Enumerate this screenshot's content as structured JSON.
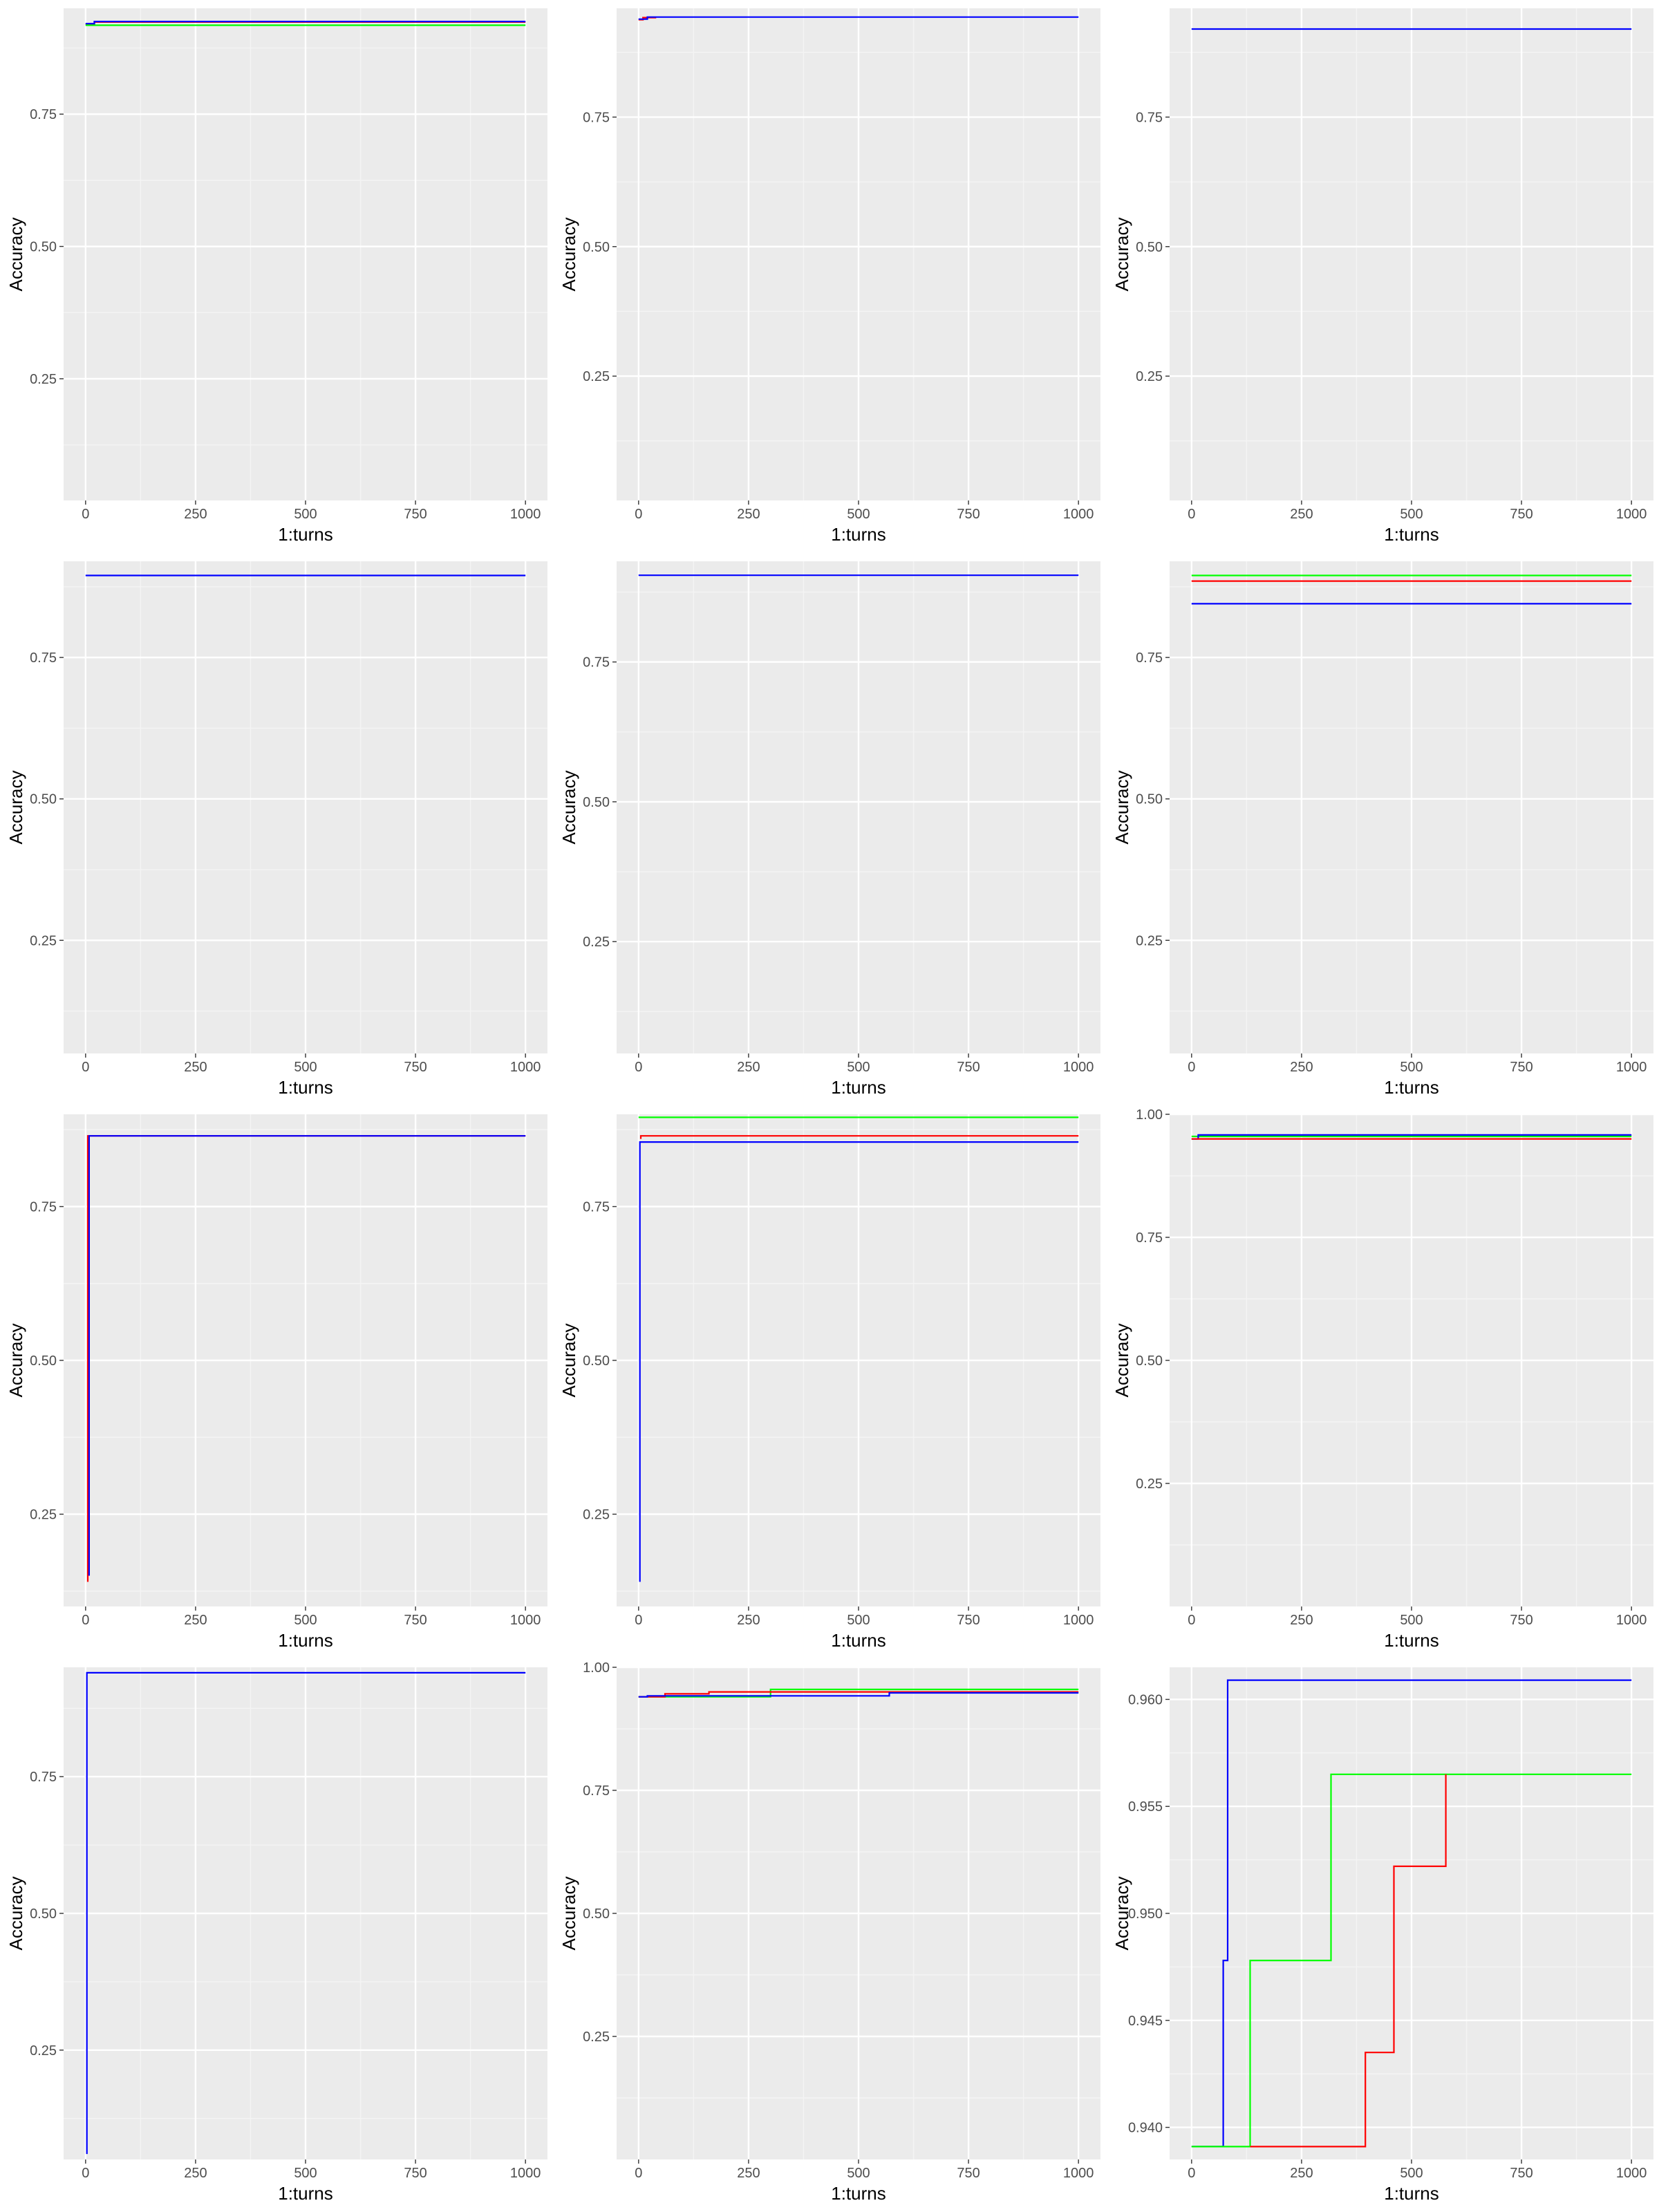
{
  "colors": {
    "panel_bg": "#ebebeb",
    "grid_major": "#ffffff",
    "grid_minor": "#f4f4f4",
    "red": "#ff0000",
    "green": "#00ff00",
    "blue": "#0000ff"
  },
  "chart_data": [
    {
      "type": "line",
      "xlabel": "1:turns",
      "ylabel": "Accuracy",
      "xlim": [
        -50,
        1050
      ],
      "ylim": [
        0.02,
        0.95
      ],
      "xticks": [
        "0",
        "250",
        "500",
        "750",
        "1000"
      ],
      "yticks": [
        "0.25",
        "0.50",
        "0.75"
      ],
      "ytick_values": [
        0.25,
        0.5,
        0.75
      ],
      "series": [
        {
          "color": "red",
          "x": [
            0,
            20,
            20,
            1000
          ],
          "y": [
            0.92,
            0.92,
            0.924,
            0.924
          ]
        },
        {
          "color": "green",
          "x": [
            0,
            1000
          ],
          "y": [
            0.918,
            0.918
          ]
        },
        {
          "color": "blue",
          "x": [
            0,
            20,
            20,
            1000
          ],
          "y": [
            0.921,
            0.921,
            0.925,
            0.925
          ]
        }
      ]
    },
    {
      "type": "line",
      "xlabel": "1:turns",
      "ylabel": "Accuracy",
      "xlim": [
        -50,
        1050
      ],
      "ylim": [
        0.01,
        0.96
      ],
      "xticks": [
        "0",
        "250",
        "500",
        "750",
        "1000"
      ],
      "yticks": [
        "0.25",
        "0.50",
        "0.75"
      ],
      "ytick_values": [
        0.25,
        0.5,
        0.75
      ],
      "series": [
        {
          "color": "red",
          "x": [
            0,
            10,
            10,
            40
          ],
          "y": [
            0.938,
            0.938,
            0.942,
            0.942
          ]
        },
        {
          "color": "blue",
          "x": [
            0,
            20,
            20,
            1000
          ],
          "y": [
            0.939,
            0.939,
            0.943,
            0.943
          ]
        }
      ]
    },
    {
      "type": "line",
      "xlabel": "1:turns",
      "ylabel": "Accuracy",
      "xlim": [
        -50,
        1050
      ],
      "ylim": [
        0.01,
        0.96
      ],
      "xticks": [
        "0",
        "250",
        "500",
        "750",
        "1000"
      ],
      "yticks": [
        "0.25",
        "0.50",
        "0.75"
      ],
      "ytick_values": [
        0.25,
        0.5,
        0.75
      ],
      "series": [
        {
          "color": "blue",
          "x": [
            0,
            1000
          ],
          "y": [
            0.92,
            0.92
          ]
        }
      ]
    },
    {
      "type": "line",
      "xlabel": "1:turns",
      "ylabel": "Accuracy",
      "xlim": [
        -50,
        1050
      ],
      "ylim": [
        0.05,
        0.92
      ],
      "xticks": [
        "0",
        "250",
        "500",
        "750",
        "1000"
      ],
      "yticks": [
        "0.25",
        "0.50",
        "0.75"
      ],
      "ytick_values": [
        0.25,
        0.5,
        0.75
      ],
      "series": [
        {
          "color": "blue",
          "x": [
            0,
            1000
          ],
          "y": [
            0.895,
            0.895
          ]
        }
      ]
    },
    {
      "type": "line",
      "xlabel": "1:turns",
      "ylabel": "Accuracy",
      "xlim": [
        -50,
        1050
      ],
      "ylim": [
        0.05,
        0.93
      ],
      "xticks": [
        "0",
        "250",
        "500",
        "750",
        "1000"
      ],
      "yticks": [
        "0.25",
        "0.50",
        "0.75"
      ],
      "ytick_values": [
        0.25,
        0.5,
        0.75
      ],
      "series": [
        {
          "color": "blue",
          "x": [
            0,
            1000
          ],
          "y": [
            0.905,
            0.905
          ]
        }
      ]
    },
    {
      "type": "line",
      "xlabel": "1:turns",
      "ylabel": "Accuracy",
      "xlim": [
        -50,
        1050
      ],
      "ylim": [
        0.05,
        0.92
      ],
      "xticks": [
        "0",
        "250",
        "500",
        "750",
        "1000"
      ],
      "yticks": [
        "0.25",
        "0.50",
        "0.75"
      ],
      "ytick_values": [
        0.25,
        0.5,
        0.75
      ],
      "series": [
        {
          "color": "green",
          "x": [
            0,
            1000
          ],
          "y": [
            0.895,
            0.895
          ]
        },
        {
          "color": "red",
          "x": [
            0,
            1000
          ],
          "y": [
            0.885,
            0.885
          ]
        },
        {
          "color": "blue",
          "x": [
            0,
            1000
          ],
          "y": [
            0.845,
            0.845
          ]
        }
      ]
    },
    {
      "type": "line",
      "xlabel": "1:turns",
      "ylabel": "Accuracy",
      "xlim": [
        -50,
        1050
      ],
      "ylim": [
        0.1,
        0.9
      ],
      "xticks": [
        "0",
        "250",
        "500",
        "750",
        "1000"
      ],
      "yticks": [
        "0.25",
        "0.50",
        "0.75"
      ],
      "ytick_values": [
        0.25,
        0.5,
        0.75
      ],
      "series": [
        {
          "color": "red",
          "x": [
            5,
            5,
            1000
          ],
          "y": [
            0.14,
            0.865,
            0.865
          ]
        },
        {
          "color": "blue",
          "x": [
            8,
            8,
            1000
          ],
          "y": [
            0.15,
            0.865,
            0.865
          ]
        }
      ]
    },
    {
      "type": "line",
      "xlabel": "1:turns",
      "ylabel": "Accuracy",
      "xlim": [
        -50,
        1050
      ],
      "ylim": [
        0.1,
        0.9
      ],
      "xticks": [
        "0",
        "250",
        "500",
        "750",
        "1000"
      ],
      "yticks": [
        "0.25",
        "0.50",
        "0.75"
      ],
      "ytick_values": [
        0.25,
        0.5,
        0.75
      ],
      "series": [
        {
          "color": "green",
          "x": [
            0,
            1000
          ],
          "y": [
            0.895,
            0.895
          ]
        },
        {
          "color": "red",
          "x": [
            5,
            5,
            1000
          ],
          "y": [
            0.86,
            0.865,
            0.865
          ]
        },
        {
          "color": "blue",
          "x": [
            3,
            3,
            1000
          ],
          "y": [
            0.14,
            0.855,
            0.855
          ]
        }
      ]
    },
    {
      "type": "line",
      "xlabel": "1:turns",
      "ylabel": "Accuracy",
      "xlim": [
        -50,
        1050
      ],
      "ylim": [
        0.0,
        1.0
      ],
      "xticks": [
        "0",
        "250",
        "500",
        "750",
        "1000"
      ],
      "yticks": [
        "0.25",
        "0.50",
        "0.75",
        "1.00"
      ],
      "ytick_values": [
        0.25,
        0.5,
        0.75,
        1.0
      ],
      "series": [
        {
          "color": "green",
          "x": [
            0,
            1000
          ],
          "y": [
            0.955,
            0.955
          ]
        },
        {
          "color": "blue",
          "x": [
            0,
            15,
            15,
            1000
          ],
          "y": [
            0.95,
            0.95,
            0.958,
            0.958
          ]
        },
        {
          "color": "red",
          "x": [
            0,
            1000
          ],
          "y": [
            0.95,
            0.95
          ]
        }
      ]
    },
    {
      "type": "line",
      "xlabel": "1:turns",
      "ylabel": "Accuracy",
      "xlim": [
        -50,
        1050
      ],
      "ylim": [
        0.05,
        0.95
      ],
      "xticks": [
        "0",
        "250",
        "500",
        "750",
        "1000"
      ],
      "yticks": [
        "0.25",
        "0.50",
        "0.75"
      ],
      "ytick_values": [
        0.25,
        0.5,
        0.75
      ],
      "series": [
        {
          "color": "blue",
          "x": [
            3,
            3,
            1000
          ],
          "y": [
            0.06,
            0.94,
            0.94
          ]
        }
      ]
    },
    {
      "type": "line",
      "xlabel": "1:turns",
      "ylabel": "Accuracy",
      "xlim": [
        -50,
        1050
      ],
      "ylim": [
        0.0,
        1.0
      ],
      "xticks": [
        "0",
        "250",
        "500",
        "750",
        "1000"
      ],
      "yticks": [
        "0.25",
        "0.50",
        "0.75",
        "1.00"
      ],
      "ytick_values": [
        0.25,
        0.5,
        0.75,
        1.0
      ],
      "series": [
        {
          "color": "green",
          "x": [
            0,
            300,
            300,
            1000
          ],
          "y": [
            0.94,
            0.94,
            0.955,
            0.955
          ]
        },
        {
          "color": "red",
          "x": [
            0,
            60,
            60,
            160,
            160,
            1000
          ],
          "y": [
            0.94,
            0.94,
            0.946,
            0.946,
            0.95,
            0.95
          ]
        },
        {
          "color": "blue",
          "x": [
            0,
            20,
            20,
            570,
            570,
            1000
          ],
          "y": [
            0.94,
            0.94,
            0.942,
            0.942,
            0.948,
            0.948
          ]
        }
      ]
    },
    {
      "type": "line",
      "xlabel": "1:turns",
      "ylabel": "Accuracy",
      "xlim": [
        -50,
        1050
      ],
      "ylim": [
        0.9385,
        0.9615
      ],
      "xticks": [
        "0",
        "250",
        "500",
        "750",
        "1000"
      ],
      "yticks": [
        "0.940",
        "0.945",
        "0.950",
        "0.955",
        "0.960"
      ],
      "ytick_values": [
        0.94,
        0.945,
        0.95,
        0.955,
        0.96
      ],
      "series": [
        {
          "color": "blue",
          "x": [
            0,
            72,
            72,
            82,
            82,
            1000
          ],
          "y": [
            0.9391,
            0.9391,
            0.9478,
            0.9478,
            0.9609,
            0.9609
          ]
        },
        {
          "color": "green",
          "x": [
            0,
            133,
            133,
            317,
            317,
            1000
          ],
          "y": [
            0.9391,
            0.9391,
            0.9478,
            0.9478,
            0.9565,
            0.9565
          ]
        },
        {
          "color": "red",
          "x": [
            133,
            395,
            395,
            460,
            460,
            578,
            578
          ],
          "y": [
            0.9391,
            0.9391,
            0.9435,
            0.9435,
            0.9522,
            0.9522,
            0.9565
          ]
        }
      ]
    }
  ]
}
